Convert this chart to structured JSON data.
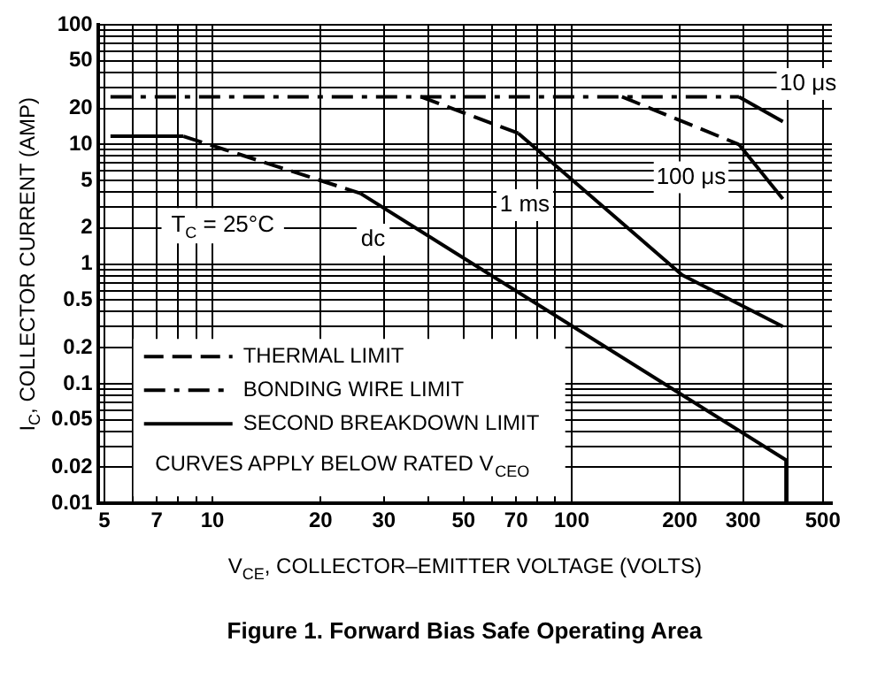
{
  "chart_data": {
    "type": "line",
    "title": "Figure 1. Forward Bias Safe Operating Area",
    "xlabel": "V$_{CE}$, COLLECTOR–EMITTER VOLTAGE (VOLTS)",
    "ylabel": "I$_{C}$, COLLECTOR CURRENT (AMP)",
    "log": "xy",
    "grid": true,
    "legend": "bottom left",
    "marker": "none",
    "xlim": [
      4.8,
      530
    ],
    "xticks": [
      5,
      {
        "value": 6,
        "label": null
      },
      7,
      {
        "value": 8,
        "label": null
      },
      {
        "value": 9,
        "label": null
      },
      10,
      20,
      30,
      {
        "value": 40,
        "label": null
      },
      50,
      {
        "value": 60,
        "label": null
      },
      70,
      {
        "value": 80,
        "label": null
      },
      {
        "value": 90,
        "label": null
      },
      100,
      200,
      300,
      {
        "value": 400,
        "label": null
      },
      500
    ],
    "ylim": [
      0.01,
      100
    ],
    "yticks": [
      0.01,
      0.02,
      {
        "value": 0.03,
        "label": null
      },
      {
        "value": 0.04,
        "label": null
      },
      0.05,
      {
        "value": 0.06,
        "label": null
      },
      {
        "value": 0.07,
        "label": null
      },
      {
        "value": 0.08,
        "label": null
      },
      {
        "value": 0.09,
        "label": null
      },
      0.1,
      0.2,
      {
        "value": 0.3,
        "label": null
      },
      {
        "value": 0.4,
        "label": null
      },
      0.5,
      {
        "value": 0.6,
        "label": null
      },
      {
        "value": 0.7,
        "label": null
      },
      {
        "value": 0.8,
        "label": null
      },
      {
        "value": 0.9,
        "label": null
      },
      1,
      2,
      {
        "value": 3,
        "label": null
      },
      {
        "value": 4,
        "label": null
      },
      5,
      {
        "value": 6,
        "label": null
      },
      {
        "value": 7,
        "label": null
      },
      {
        "value": 8,
        "label": null
      },
      {
        "value": 9,
        "label": null
      },
      10,
      20,
      {
        "value": 30,
        "label": null
      },
      {
        "value": 40,
        "label": null
      },
      50,
      {
        "value": 60,
        "label": null
      },
      {
        "value": 70,
        "label": null
      },
      {
        "value": 80,
        "label": null
      },
      {
        "value": 90,
        "label": null
      },
      100
    ],
    "series": [
      {
        "name": "THERMAL LIMIT",
        "color": "#000000",
        "line_style": "dashed",
        "x": [
          8.3,
          25.8
        ],
        "values": [
          11.7,
          3.9
        ]
      },
      {
        "name": "BONDING WIRE LIMIT",
        "color": "#000000",
        "line_style": "dashdot",
        "x": [
          5.2,
          292
        ],
        "values": [
          25,
          25
        ]
      },
      {
        "name": "SECOND BREAKDOWN LIMIT",
        "color": "#000000",
        "line_style": "solid",
        "x": [
          25.8,
          395,
          395
        ],
        "values": [
          3.9,
          0.023,
          0.01
        ]
      },
      {
        "color": "#000000",
        "line_style": "solid",
        "x": [
          5.2,
          8.3
        ],
        "values": [
          11.7,
          11.7
        ]
      },
      {
        "color": "#000000",
        "line_style": "dashed",
        "x": [
          38,
          71
        ],
        "values": [
          25,
          12.4
        ]
      },
      {
        "color": "#000000",
        "line_style": "solid",
        "x": [
          71,
          203,
          387
        ],
        "values": [
          12.4,
          0.81,
          0.3
        ]
      },
      {
        "color": "#000000",
        "line_style": "dashed",
        "x": [
          138,
          292
        ],
        "values": [
          25,
          10
        ]
      },
      {
        "color": "#000000",
        "line_style": "solid",
        "x": [
          292,
          387
        ],
        "values": [
          10,
          3.5
        ]
      },
      {
        "color": "#000000",
        "line_style": "solid",
        "x": [
          292,
          387
        ],
        "values": [
          25,
          15.5
        ]
      }
    ],
    "annotations": [
      "T$_{C}$ = 25°C",
      {
        "text": "dc",
        "x": 28,
        "y": 1.6
      },
      {
        "text": "1 ms",
        "x": 74,
        "y": 3.1
      },
      {
        "text": "100 μs",
        "x": 215,
        "y": 5.3
      },
      {
        "text": "10 μs",
        "x": 455,
        "y": 32
      },
      "CURVES APPLY BELOW RATED V$_{CEO}$"
    ]
  }
}
